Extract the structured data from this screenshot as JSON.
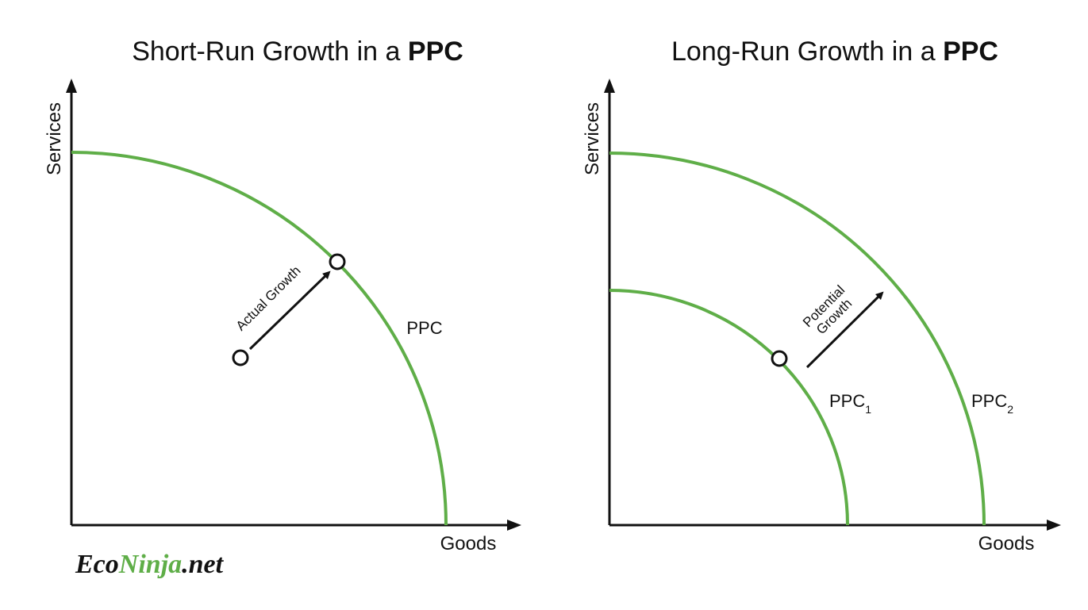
{
  "panels": [
    {
      "title": {
        "text": "Short-Run Growth in a ",
        "bold": "PPC"
      },
      "y_axis_label": "Services",
      "x_axis_label": "Goods",
      "curves": [
        {
          "label": "PPC"
        }
      ],
      "annotation": [
        "Actual Growth"
      ]
    },
    {
      "title": {
        "text": "Long-Run Growth in a ",
        "bold": "PPC"
      },
      "y_axis_label": "Services",
      "x_axis_label": "Goods",
      "curves": [
        {
          "label": "PPC",
          "subscript": "1"
        },
        {
          "label": "PPC",
          "subscript": "2"
        }
      ],
      "annotation": [
        "Potential",
        "Growth"
      ]
    }
  ],
  "logo": {
    "part1": "Eco",
    "part2": "Ninja",
    "part3": ".net"
  }
}
